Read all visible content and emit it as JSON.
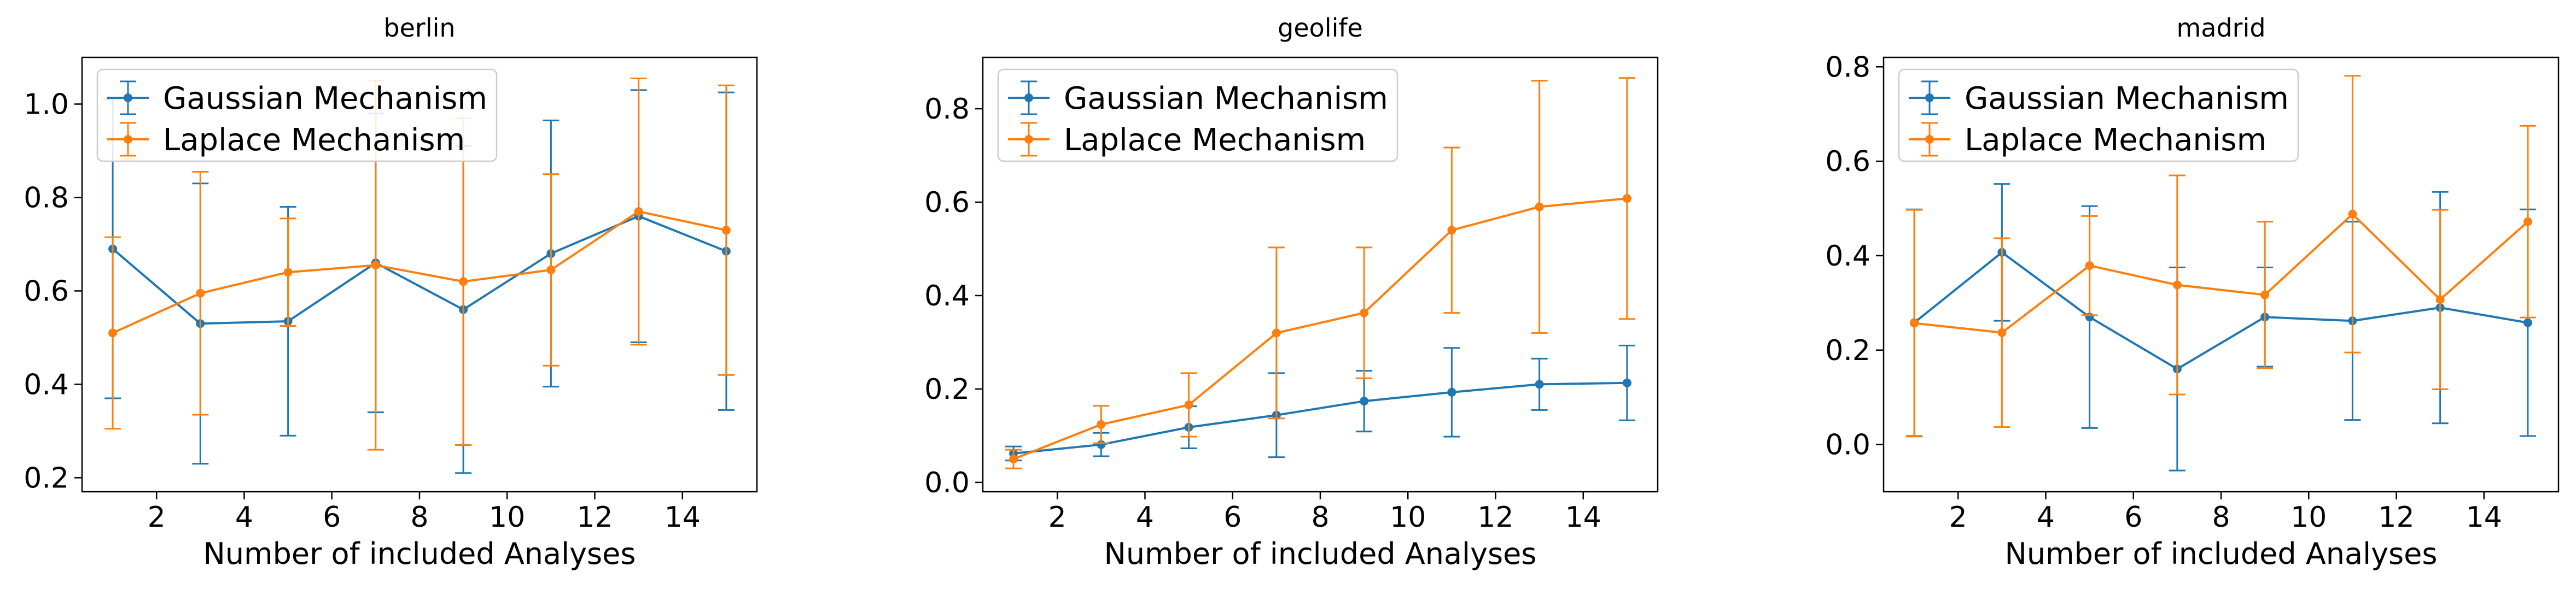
{
  "colors": {
    "gaussian": "#1f77b4",
    "laplace": "#ff7f0e"
  },
  "chart_data": [
    {
      "type": "line",
      "title": "berlin",
      "xlabel": "Number of included Analyses",
      "ylabel": "",
      "xlim": [
        0.3,
        15.7
      ],
      "ylim": [
        0.17,
        1.1
      ],
      "xticks": [
        2,
        4,
        6,
        8,
        10,
        12,
        14
      ],
      "yticks": [
        0.2,
        0.4,
        0.6,
        0.8,
        1.0
      ],
      "ytick_labels": [
        "0.2",
        "0.4",
        "0.6",
        "0.8",
        "1.0"
      ],
      "legend_position": "top-left",
      "x": [
        1,
        3,
        5,
        7,
        9,
        11,
        13,
        15
      ],
      "series": [
        {
          "name": "Gaussian Mechanism",
          "values": [
            0.69,
            0.53,
            0.535,
            0.66,
            0.56,
            0.68,
            0.76,
            0.685
          ],
          "err": [
            0.32,
            0.3,
            0.245,
            0.32,
            0.35,
            0.285,
            0.27,
            0.34
          ]
        },
        {
          "name": "Laplace Mechanism",
          "values": [
            0.51,
            0.595,
            0.64,
            0.655,
            0.62,
            0.645,
            0.77,
            0.73
          ],
          "err": [
            0.205,
            0.26,
            0.115,
            0.395,
            0.35,
            0.205,
            0.285,
            0.31
          ]
        }
      ]
    },
    {
      "type": "line",
      "title": "geolife",
      "xlabel": "Number of included Analyses",
      "ylabel": "",
      "xlim": [
        0.3,
        15.7
      ],
      "ylim": [
        -0.02,
        0.91
      ],
      "xticks": [
        2,
        4,
        6,
        8,
        10,
        12,
        14
      ],
      "yticks": [
        0.0,
        0.2,
        0.4,
        0.6,
        0.8
      ],
      "ytick_labels": [
        "0.0",
        "0.2",
        "0.4",
        "0.6",
        "0.8"
      ],
      "legend_position": "top-left",
      "x": [
        1,
        3,
        5,
        7,
        9,
        11,
        13,
        15
      ],
      "series": [
        {
          "name": "Gaussian Mechanism",
          "values": [
            0.062,
            0.081,
            0.118,
            0.144,
            0.174,
            0.193,
            0.21,
            0.213
          ],
          "err": [
            0.015,
            0.025,
            0.045,
            0.09,
            0.065,
            0.095,
            0.055,
            0.08
          ]
        },
        {
          "name": "Laplace Mechanism",
          "values": [
            0.05,
            0.124,
            0.166,
            0.32,
            0.363,
            0.54,
            0.59,
            0.608
          ],
          "err": [
            0.02,
            0.04,
            0.068,
            0.183,
            0.14,
            0.177,
            0.27,
            0.258
          ]
        }
      ]
    },
    {
      "type": "line",
      "title": "madrid",
      "xlabel": "Number of included Analyses",
      "ylabel": "",
      "xlim": [
        0.3,
        15.7
      ],
      "ylim": [
        -0.1,
        0.82
      ],
      "xticks": [
        2,
        4,
        6,
        8,
        10,
        12,
        14
      ],
      "yticks": [
        0.0,
        0.2,
        0.4,
        0.6,
        0.8
      ],
      "ytick_labels": [
        "0.0",
        "0.2",
        "0.4",
        "0.6",
        "0.8"
      ],
      "legend_position": "top-left",
      "x": [
        1,
        3,
        5,
        7,
        9,
        11,
        13,
        15
      ],
      "series": [
        {
          "name": "Gaussian Mechanism",
          "values": [
            0.258,
            0.407,
            0.27,
            0.16,
            0.27,
            0.262,
            0.29,
            0.258
          ],
          "err": [
            0.24,
            0.145,
            0.235,
            0.215,
            0.105,
            0.21,
            0.245,
            0.24
          ]
        },
        {
          "name": "Laplace Mechanism",
          "values": [
            0.257,
            0.237,
            0.379,
            0.338,
            0.317,
            0.488,
            0.307,
            0.472
          ],
          "err": [
            0.24,
            0.2,
            0.105,
            0.232,
            0.155,
            0.293,
            0.19,
            0.203
          ]
        }
      ]
    }
  ]
}
